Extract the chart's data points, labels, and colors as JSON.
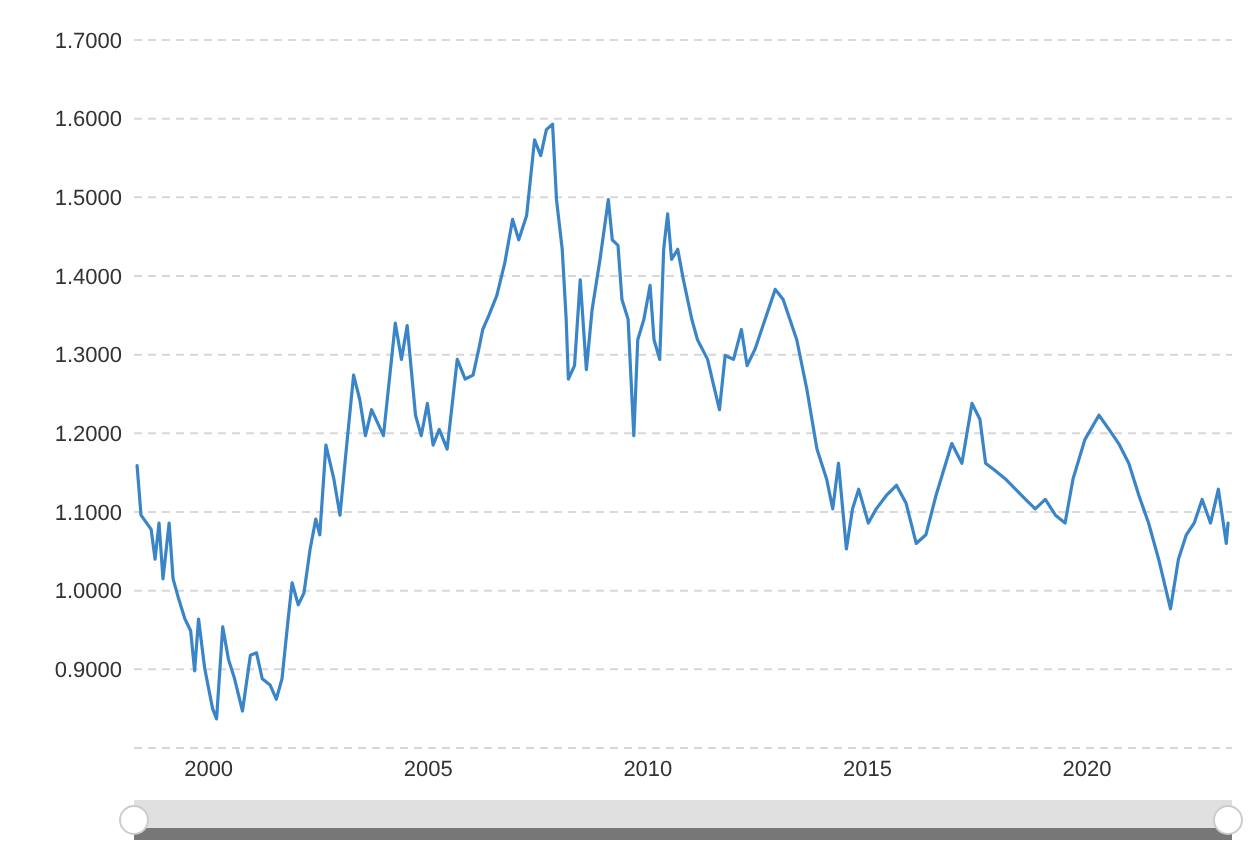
{
  "chart_data": {
    "type": "line",
    "x": [
      1998.37,
      1998.46,
      1998.69,
      1998.78,
      1998.87,
      1998.96,
      1999.1,
      1999.19,
      1999.32,
      1999.46,
      1999.59,
      1999.68,
      1999.77,
      1999.91,
      2000.09,
      2000.18,
      2000.32,
      2000.45,
      2000.59,
      2000.77,
      2000.95,
      2001.09,
      2001.22,
      2001.4,
      2001.54,
      2001.67,
      2001.81,
      2001.9,
      2002.04,
      2002.17,
      2002.31,
      2002.44,
      2002.53,
      2002.67,
      2002.85,
      2002.99,
      2003.12,
      2003.3,
      2003.44,
      2003.57,
      2003.71,
      2003.85,
      2003.98,
      2004.25,
      2004.39,
      2004.52,
      2004.71,
      2004.84,
      2004.98,
      2005.11,
      2005.25,
      2005.43,
      2005.66,
      2005.84,
      2006.02,
      2006.15,
      2006.24,
      2006.38,
      2006.56,
      2006.74,
      2006.92,
      2007.06,
      2007.24,
      2007.42,
      2007.56,
      2007.69,
      2007.83,
      2007.92,
      2008.05,
      2008.14,
      2008.19,
      2008.33,
      2008.46,
      2008.6,
      2008.73,
      2008.91,
      2009.1,
      2009.19,
      2009.32,
      2009.41,
      2009.55,
      2009.68,
      2009.77,
      2009.91,
      2010.05,
      2010.14,
      2010.27,
      2010.36,
      2010.45,
      2010.54,
      2010.68,
      2010.81,
      2011.0,
      2011.13,
      2011.36,
      2011.49,
      2011.63,
      2011.76,
      2011.95,
      2012.13,
      2012.26,
      2012.44,
      2012.67,
      2012.9,
      2013.08,
      2013.39,
      2013.62,
      2013.85,
      2014.07,
      2014.21,
      2014.34,
      2014.52,
      2014.66,
      2014.8,
      2015.02,
      2015.2,
      2015.43,
      2015.66,
      2015.88,
      2016.11,
      2016.33,
      2016.56,
      2016.92,
      2017.15,
      2017.38,
      2017.56,
      2017.69,
      2017.92,
      2018.14,
      2018.37,
      2018.6,
      2018.82,
      2019.05,
      2019.28,
      2019.5,
      2019.68,
      2019.95,
      2020.27,
      2020.5,
      2020.72,
      2020.95,
      2021.18,
      2021.4,
      2021.63,
      2021.9,
      2022.08,
      2022.26,
      2022.44,
      2022.62,
      2022.81,
      2022.99,
      2023.17,
      2023.21
    ],
    "series": [
      {
        "color": "#3a85c7",
        "values": [
          1.159,
          1.096,
          1.078,
          1.04,
          1.086,
          1.015,
          1.086,
          1.015,
          0.989,
          0.964,
          0.949,
          0.898,
          0.964,
          0.901,
          0.85,
          0.837,
          0.954,
          0.913,
          0.888,
          0.847,
          0.918,
          0.921,
          0.888,
          0.88,
          0.862,
          0.888,
          0.964,
          1.01,
          0.982,
          0.997,
          1.053,
          1.091,
          1.071,
          1.185,
          1.142,
          1.096,
          1.172,
          1.274,
          1.243,
          1.197,
          1.23,
          1.213,
          1.197,
          1.34,
          1.294,
          1.337,
          1.223,
          1.197,
          1.238,
          1.185,
          1.205,
          1.18,
          1.294,
          1.269,
          1.274,
          1.307,
          1.332,
          1.35,
          1.375,
          1.416,
          1.472,
          1.446,
          1.477,
          1.573,
          1.553,
          1.586,
          1.593,
          1.497,
          1.434,
          1.345,
          1.269,
          1.286,
          1.395,
          1.281,
          1.357,
          1.421,
          1.497,
          1.446,
          1.439,
          1.37,
          1.345,
          1.197,
          1.319,
          1.345,
          1.388,
          1.319,
          1.294,
          1.434,
          1.479,
          1.421,
          1.434,
          1.395,
          1.345,
          1.319,
          1.294,
          1.263,
          1.23,
          1.299,
          1.294,
          1.332,
          1.286,
          1.307,
          1.345,
          1.383,
          1.37,
          1.319,
          1.256,
          1.18,
          1.142,
          1.104,
          1.162,
          1.053,
          1.104,
          1.129,
          1.086,
          1.104,
          1.121,
          1.134,
          1.111,
          1.06,
          1.071,
          1.121,
          1.187,
          1.162,
          1.238,
          1.218,
          1.162,
          1.152,
          1.142,
          1.129,
          1.116,
          1.104,
          1.116,
          1.096,
          1.086,
          1.142,
          1.192,
          1.223,
          1.205,
          1.187,
          1.162,
          1.121,
          1.086,
          1.04,
          0.977,
          1.04,
          1.071,
          1.086,
          1.116,
          1.086,
          1.129,
          1.06,
          1.086
        ]
      }
    ],
    "xlim": [
      1998.3,
      2023.3
    ],
    "xticks": [
      2000,
      2005,
      2010,
      2015,
      2020
    ],
    "ylim": [
      0.8,
      1.7
    ],
    "yticks": [
      {
        "value": 0.8,
        "label": null
      },
      {
        "value": 0.9,
        "label": "0.9000"
      },
      {
        "value": 1.0,
        "label": "1.0000"
      },
      {
        "value": 1.1,
        "label": "1.1000"
      },
      {
        "value": 1.2,
        "label": "1.2000"
      },
      {
        "value": 1.3,
        "label": "1.3000"
      },
      {
        "value": 1.4,
        "label": "1.4000"
      },
      {
        "value": 1.5,
        "label": "1.5000"
      },
      {
        "value": 1.6,
        "label": "1.6000"
      },
      {
        "value": 1.7,
        "label": "1.7000"
      }
    ],
    "grid": "y",
    "line_style": "solid",
    "marker": "none"
  }
}
